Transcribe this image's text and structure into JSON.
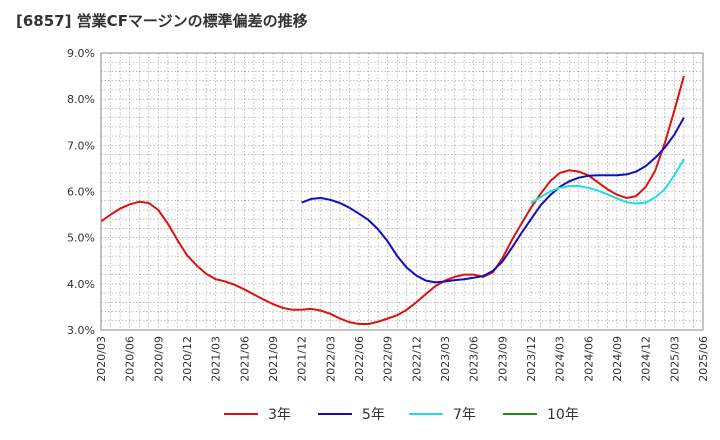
{
  "title": "[6857]  営業CFマージンの標準偏差の推移",
  "chart_data": {
    "type": "line",
    "title": "[6857]  営業CFマージンの標準偏差の推移",
    "xlabel": "",
    "ylabel": "",
    "ylim": [
      3.0,
      9.0
    ],
    "y_ticks": [
      "3.0%",
      "4.0%",
      "5.0%",
      "6.0%",
      "7.0%",
      "8.0%",
      "9.0%"
    ],
    "x_ticks": [
      "2020/03",
      "2020/06",
      "2020/09",
      "2020/12",
      "2021/03",
      "2021/06",
      "2021/09",
      "2021/12",
      "2022/03",
      "2022/06",
      "2022/09",
      "2022/12",
      "2023/03",
      "2023/06",
      "2023/09",
      "2023/12",
      "2024/03",
      "2024/06",
      "2024/09",
      "2024/12",
      "2025/03",
      "2025/06"
    ],
    "grid": true,
    "legend_position": "bottom",
    "series": [
      {
        "name": "3年",
        "color": "#dd1111",
        "points": [
          [
            "2020/03",
            5.35
          ],
          [
            "2020/04",
            5.5
          ],
          [
            "2020/05",
            5.63
          ],
          [
            "2020/06",
            5.72
          ],
          [
            "2020/07",
            5.78
          ],
          [
            "2020/08",
            5.75
          ],
          [
            "2020/09",
            5.6
          ],
          [
            "2020/10",
            5.3
          ],
          [
            "2020/11",
            4.95
          ],
          [
            "2020/12",
            4.62
          ],
          [
            "2021/01",
            4.4
          ],
          [
            "2021/02",
            4.22
          ],
          [
            "2021/03",
            4.1
          ],
          [
            "2021/04",
            4.05
          ],
          [
            "2021/05",
            3.98
          ],
          [
            "2021/06",
            3.88
          ],
          [
            "2021/07",
            3.77
          ],
          [
            "2021/08",
            3.66
          ],
          [
            "2021/09",
            3.56
          ],
          [
            "2021/10",
            3.48
          ],
          [
            "2021/11",
            3.44
          ],
          [
            "2021/12",
            3.44
          ],
          [
            "2022/01",
            3.46
          ],
          [
            "2022/02",
            3.42
          ],
          [
            "2022/03",
            3.35
          ],
          [
            "2022/04",
            3.25
          ],
          [
            "2022/05",
            3.17
          ],
          [
            "2022/06",
            3.13
          ],
          [
            "2022/07",
            3.13
          ],
          [
            "2022/08",
            3.18
          ],
          [
            "2022/09",
            3.25
          ],
          [
            "2022/10",
            3.32
          ],
          [
            "2022/11",
            3.44
          ],
          [
            "2022/12",
            3.6
          ],
          [
            "2023/01",
            3.78
          ],
          [
            "2023/02",
            3.95
          ],
          [
            "2023/03",
            4.07
          ],
          [
            "2023/04",
            4.15
          ],
          [
            "2023/05",
            4.2
          ],
          [
            "2023/06",
            4.2
          ],
          [
            "2023/07",
            4.15
          ],
          [
            "2023/08",
            4.25
          ],
          [
            "2023/09",
            4.55
          ],
          [
            "2023/10",
            4.95
          ],
          [
            "2023/11",
            5.3
          ],
          [
            "2023/12",
            5.65
          ],
          [
            "2024/01",
            5.95
          ],
          [
            "2024/02",
            6.22
          ],
          [
            "2024/03",
            6.4
          ],
          [
            "2024/04",
            6.46
          ],
          [
            "2024/05",
            6.43
          ],
          [
            "2024/06",
            6.35
          ],
          [
            "2024/07",
            6.2
          ],
          [
            "2024/08",
            6.05
          ],
          [
            "2024/09",
            5.93
          ],
          [
            "2024/10",
            5.86
          ],
          [
            "2024/11",
            5.9
          ],
          [
            "2024/12",
            6.1
          ],
          [
            "2025/01",
            6.45
          ],
          [
            "2025/02",
            7.05
          ],
          [
            "2025/03",
            7.75
          ],
          [
            "2025/04",
            8.5
          ]
        ]
      },
      {
        "name": "5年",
        "color": "#1111bb",
        "points": [
          [
            "2021/12",
            5.76
          ],
          [
            "2022/01",
            5.84
          ],
          [
            "2022/02",
            5.86
          ],
          [
            "2022/03",
            5.82
          ],
          [
            "2022/04",
            5.75
          ],
          [
            "2022/05",
            5.65
          ],
          [
            "2022/06",
            5.52
          ],
          [
            "2022/07",
            5.38
          ],
          [
            "2022/08",
            5.18
          ],
          [
            "2022/09",
            4.92
          ],
          [
            "2022/10",
            4.6
          ],
          [
            "2022/11",
            4.35
          ],
          [
            "2022/12",
            4.18
          ],
          [
            "2023/01",
            4.07
          ],
          [
            "2023/02",
            4.03
          ],
          [
            "2023/03",
            4.05
          ],
          [
            "2023/04",
            4.08
          ],
          [
            "2023/05",
            4.1
          ],
          [
            "2023/06",
            4.13
          ],
          [
            "2023/07",
            4.17
          ],
          [
            "2023/08",
            4.28
          ],
          [
            "2023/09",
            4.48
          ],
          [
            "2023/10",
            4.78
          ],
          [
            "2023/11",
            5.1
          ],
          [
            "2023/12",
            5.4
          ],
          [
            "2024/01",
            5.7
          ],
          [
            "2024/02",
            5.92
          ],
          [
            "2024/03",
            6.1
          ],
          [
            "2024/04",
            6.22
          ],
          [
            "2024/05",
            6.3
          ],
          [
            "2024/06",
            6.34
          ],
          [
            "2024/07",
            6.35
          ],
          [
            "2024/08",
            6.35
          ],
          [
            "2024/09",
            6.35
          ],
          [
            "2024/10",
            6.37
          ],
          [
            "2024/11",
            6.43
          ],
          [
            "2024/12",
            6.55
          ],
          [
            "2025/01",
            6.73
          ],
          [
            "2025/02",
            6.95
          ],
          [
            "2025/03",
            7.23
          ],
          [
            "2025/04",
            7.6
          ]
        ]
      },
      {
        "name": "7年",
        "color": "#22dddd",
        "points": [
          [
            "2023/12",
            5.75
          ],
          [
            "2024/01",
            5.88
          ],
          [
            "2024/02",
            6.0
          ],
          [
            "2024/03",
            6.08
          ],
          [
            "2024/04",
            6.12
          ],
          [
            "2024/05",
            6.12
          ],
          [
            "2024/06",
            6.08
          ],
          [
            "2024/07",
            6.02
          ],
          [
            "2024/08",
            5.94
          ],
          [
            "2024/09",
            5.85
          ],
          [
            "2024/10",
            5.77
          ],
          [
            "2024/11",
            5.74
          ],
          [
            "2024/12",
            5.76
          ],
          [
            "2025/01",
            5.87
          ],
          [
            "2025/02",
            6.05
          ],
          [
            "2025/03",
            6.35
          ],
          [
            "2025/04",
            6.7
          ]
        ]
      },
      {
        "name": "10年",
        "color": "#228822",
        "points": []
      }
    ]
  }
}
